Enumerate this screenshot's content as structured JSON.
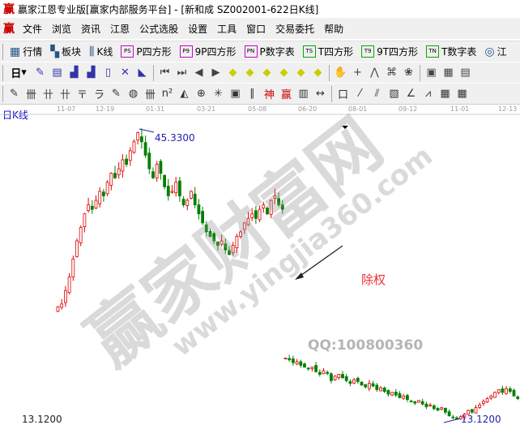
{
  "window": {
    "title": "赢家江恩专业版[赢家内部服务平台] - [新和成  SZ002001-622日K线]"
  },
  "menu": [
    "文件",
    "浏览",
    "资讯",
    "江恩",
    "公式选股",
    "设置",
    "工具",
    "窗口",
    "交易委托",
    "帮助"
  ],
  "toolbar1": [
    {
      "icon": "grid-icon",
      "label": "行情"
    },
    {
      "icon": "blocks-icon",
      "label": "板块"
    },
    {
      "icon": "candles-icon",
      "label": "K线"
    },
    {
      "icon": "PS",
      "label": "P四方形"
    },
    {
      "icon": "P9",
      "label": "9P四方形"
    },
    {
      "icon": "PN",
      "label": "P数字表"
    },
    {
      "icon": "TS",
      "label": "T四方形"
    },
    {
      "icon": "T9",
      "label": "9T四方形"
    },
    {
      "icon": "TN",
      "label": "T数字表"
    },
    {
      "icon": "target-icon",
      "label": "江"
    }
  ],
  "toolbar2": {
    "period": "日",
    "icons": [
      "draw-icon",
      "doc-icon",
      "chart3-icon",
      "chart9-icon",
      "candle-icon",
      "cross-icon",
      "flag-icon",
      "first-icon",
      "last-icon",
      "left-icon",
      "right-icon",
      "diamond-left-icon",
      "diamond-right-icon",
      "diamond-h-icon",
      "diamond-x-icon",
      "diamond-all-icon",
      "diamond-v-icon",
      "hand-icon",
      "crosshair-icon",
      "line-icon",
      "pattern-icon",
      "globe-icon",
      "calendar-icon",
      "calculator-icon",
      "notes-icon"
    ]
  },
  "toolbar3": {
    "icons": [
      "pen-icon",
      "lines-icon",
      "gann1-icon",
      "gann2-icon",
      "fork-icon",
      "spiral-icon",
      "pen2-icon",
      "circle-icon",
      "parallel-icon",
      "n2-icon",
      "triangle-icon",
      "target-icon",
      "web-icon",
      "box-icon",
      "angle-icon",
      "shen-icon",
      "ying-icon",
      "grid-icon",
      "measure-icon",
      "rect-icon",
      "fan-icon",
      "fan2-icon",
      "fan3-icon",
      "angle2-icon",
      "zigzag-icon",
      "gridbox-icon",
      "gridbox2-icon"
    ]
  },
  "axis_dates": [
    "11-07",
    "12-19",
    "01-31",
    "03-21",
    "05-08",
    "06-20",
    "08-01",
    "09-12",
    "11-01",
    "12-13"
  ],
  "chart_label": "日K线",
  "annotations": {
    "high": "45.3300",
    "low": "13.1200",
    "bottom_left": "13.1200",
    "ex_rights": "除权",
    "qq": "QQ:100800360"
  },
  "watermark": {
    "main": "赢家财富网",
    "url": "www.yingjia360.com"
  },
  "colors": {
    "up": "#e00000",
    "down": "#008000",
    "label": "#2222aa"
  },
  "chart_data": {
    "type": "candlestick",
    "ylim": [
      13.12,
      45.33
    ],
    "segments": [
      {
        "closes": [
          25.7,
          26,
          27.5,
          29,
          31,
          33,
          34.5,
          36,
          37,
          36.5,
          37.5,
          38.5,
          38,
          39.5,
          40.5,
          40,
          41,
          42,
          41.5,
          43,
          44,
          45,
          44,
          42.5,
          41,
          40,
          41.5,
          40.5,
          39,
          38,
          38.5,
          39.5,
          38,
          37,
          37.5,
          38.5,
          37,
          36,
          35,
          34,
          33.5,
          33,
          32.5,
          33,
          32,
          31.5,
          32.5,
          33.5,
          34,
          35,
          35.5,
          36,
          35.5,
          36.5,
          37,
          36,
          37.5,
          38,
          37,
          36.5
        ]
      },
      {
        "closes": [
          20,
          19.8,
          19.5,
          19.6,
          19.2,
          19,
          18.8,
          19,
          18.5,
          18.2,
          18.6,
          18.3,
          17.5,
          18,
          18.2,
          17.8,
          17.5,
          17.2,
          17.6,
          17.4,
          17,
          16.8,
          17.2,
          16.9,
          16.5,
          16.7,
          16.3,
          16,
          16.2,
          15.9,
          15.6,
          15.8,
          15.4,
          15.2,
          15,
          15.3,
          14.9,
          14.6,
          14.8,
          14.4,
          14.2,
          14.5,
          14,
          13.6,
          13.4,
          13.2,
          13.5,
          13.8,
          14.2,
          14,
          14.5,
          14.8,
          15.2,
          15.5,
          15.8,
          16.2,
          16.5,
          16.2,
          16.6,
          16.3,
          15.8,
          15.5
        ]
      }
    ]
  }
}
